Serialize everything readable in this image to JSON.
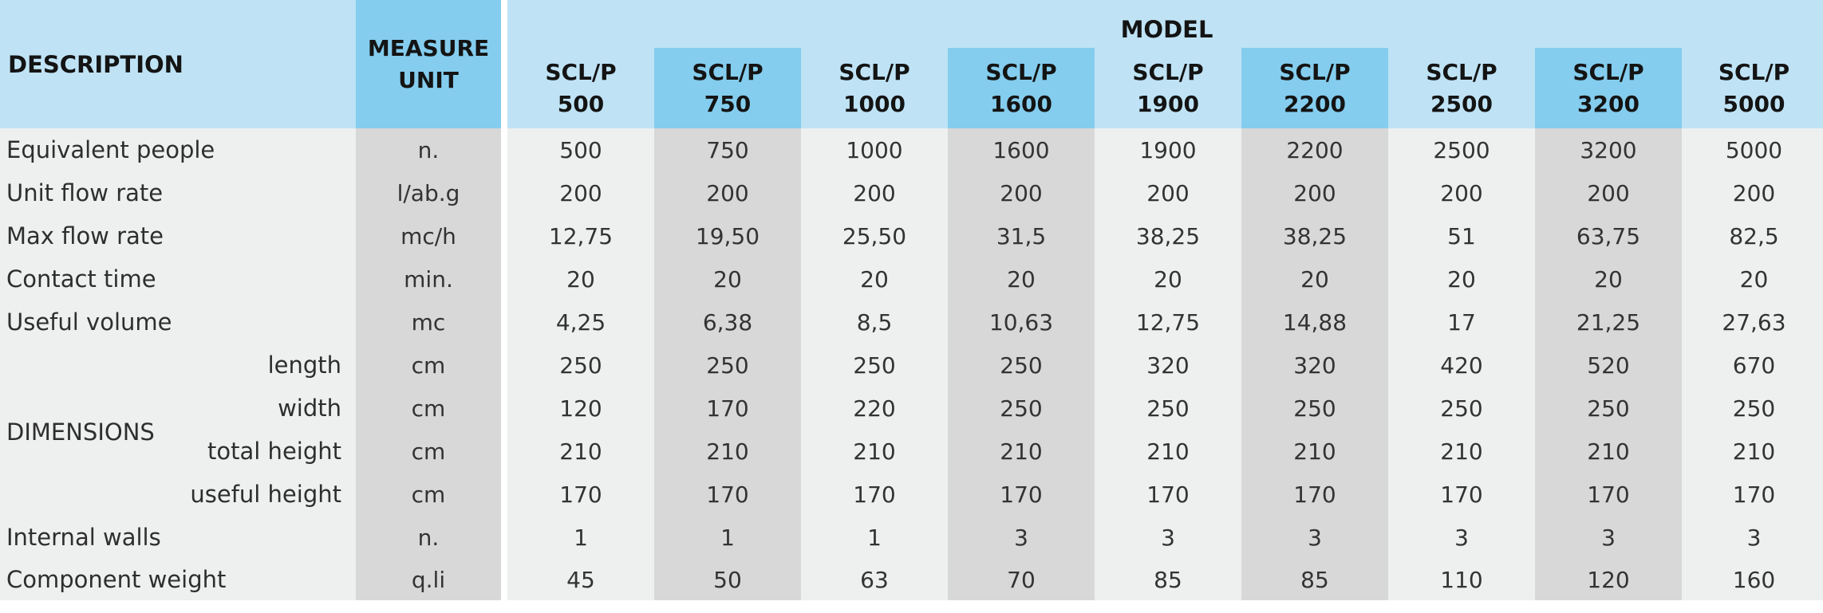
{
  "header": {
    "description": "DESCRIPTION",
    "measure_unit_line1": "MEASURE",
    "measure_unit_line2": "UNIT",
    "model": "MODEL",
    "models": [
      {
        "line1": "SCL/P",
        "line2": "500"
      },
      {
        "line1": "SCL/P",
        "line2": "750"
      },
      {
        "line1": "SCL/P",
        "line2": "1000"
      },
      {
        "line1": "SCL/P",
        "line2": "1600"
      },
      {
        "line1": "SCL/P",
        "line2": "1900"
      },
      {
        "line1": "SCL/P",
        "line2": "2200"
      },
      {
        "line1": "SCL/P",
        "line2": "2500"
      },
      {
        "line1": "SCL/P",
        "line2": "3200"
      },
      {
        "line1": "SCL/P",
        "line2": "5000"
      }
    ]
  },
  "dimensions_label": "DIMENSIONS",
  "rows": [
    {
      "label": "Equivalent people",
      "unit": "n.",
      "values": [
        "500",
        "750",
        "1000",
        "1600",
        "1900",
        "2200",
        "2500",
        "3200",
        "5000"
      ]
    },
    {
      "label": "Unit flow rate",
      "unit": "l/ab.g",
      "values": [
        "200",
        "200",
        "200",
        "200",
        "200",
        "200",
        "200",
        "200",
        "200"
      ]
    },
    {
      "label": "Max flow rate",
      "unit": "mc/h",
      "values": [
        "12,75",
        "19,50",
        "25,50",
        "31,5",
        "38,25",
        "38,25",
        "51",
        "63,75",
        "82,5"
      ]
    },
    {
      "label": "Contact time",
      "unit": "min.",
      "values": [
        "20",
        "20",
        "20",
        "20",
        "20",
        "20",
        "20",
        "20",
        "20"
      ]
    },
    {
      "label": "Useful volume",
      "unit": "mc",
      "values": [
        "4,25",
        "6,38",
        "8,5",
        "10,63",
        "12,75",
        "14,88",
        "17",
        "21,25",
        "27,63"
      ]
    },
    {
      "label": "length",
      "unit": "cm",
      "values": [
        "250",
        "250",
        "250",
        "250",
        "320",
        "320",
        "420",
        "520",
        "670"
      ]
    },
    {
      "label": "width",
      "unit": "cm",
      "values": [
        "120",
        "170",
        "220",
        "250",
        "250",
        "250",
        "250",
        "250",
        "250"
      ]
    },
    {
      "label": "total height",
      "unit": "cm",
      "values": [
        "210",
        "210",
        "210",
        "210",
        "210",
        "210",
        "210",
        "210",
        "210"
      ]
    },
    {
      "label": "useful height",
      "unit": "cm",
      "values": [
        "170",
        "170",
        "170",
        "170",
        "170",
        "170",
        "170",
        "170",
        "170"
      ]
    },
    {
      "label": "Internal walls",
      "unit": "n.",
      "values": [
        "1",
        "1",
        "1",
        "3",
        "3",
        "3",
        "3",
        "3",
        "3"
      ]
    },
    {
      "label": "Component weight",
      "unit": "q.li",
      "values": [
        "45",
        "50",
        "63",
        "70",
        "85",
        "85",
        "110",
        "120",
        "160"
      ]
    }
  ],
  "colors": {
    "header_light": "#bfe3f5",
    "header_dark": "#84cdee",
    "body_light": "#eeefef",
    "body_dark": "#d8d8d9"
  }
}
